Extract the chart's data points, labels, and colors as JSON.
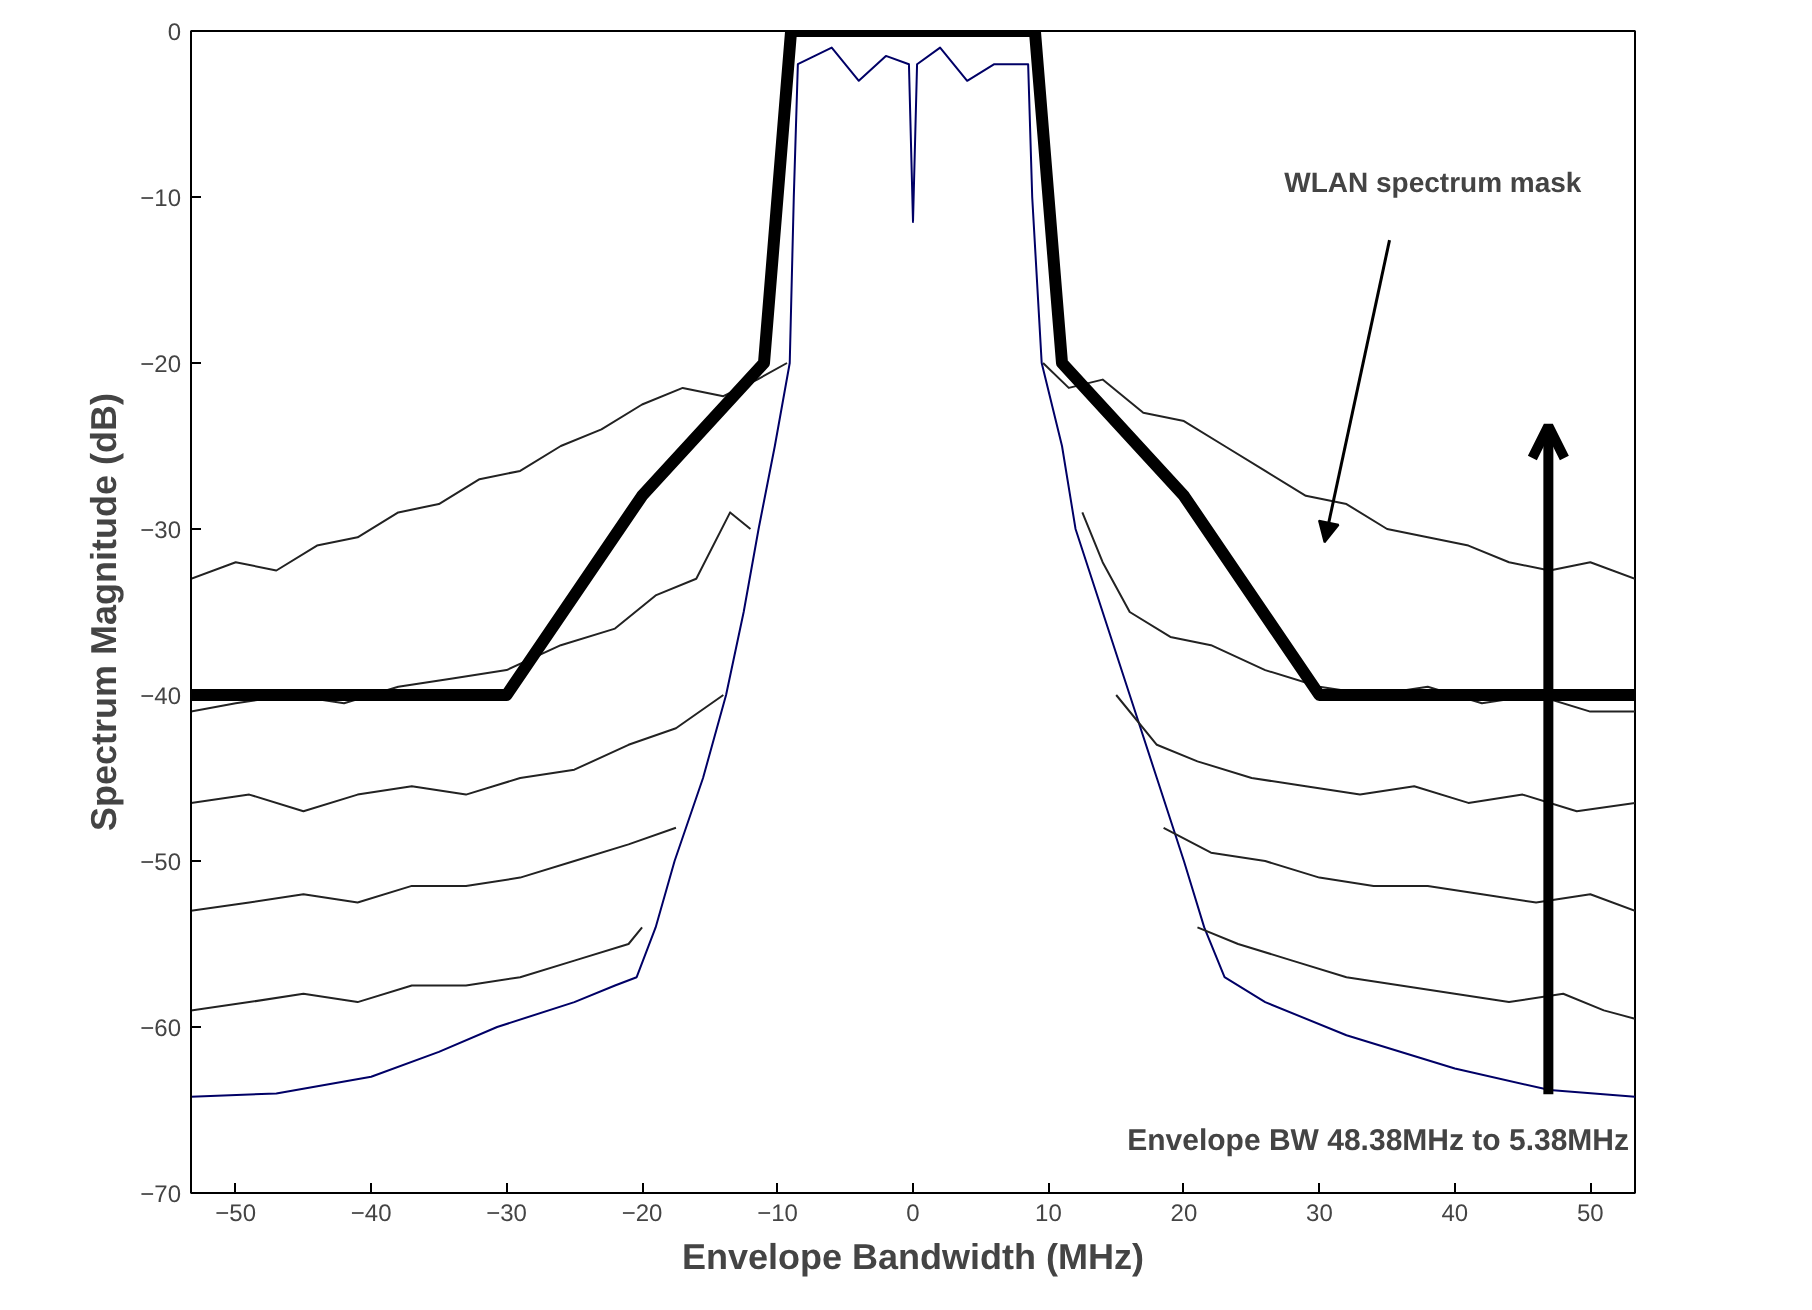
{
  "chart_data": {
    "type": "line",
    "xlabel": "Envelope Bandwidth (MHz)",
    "ylabel": "Spectrum Magnitude (dB)",
    "xlim": [
      -53.3,
      53.3
    ],
    "xticks": [
      -50,
      -40,
      -30,
      -20,
      -10,
      0,
      10,
      20,
      30,
      40,
      50
    ],
    "ylim": [
      -70,
      0
    ],
    "yticks": [
      -70,
      -60,
      -50,
      -40,
      -30,
      -20,
      -10,
      0
    ],
    "grid": false,
    "line_style": "solid",
    "annotations": [
      "Envelope BW 48.38MHz to 5.38MHz"
    ],
    "series": [
      {
        "color": "#000066",
        "x": [
          -53.3,
          -47,
          -40,
          -35,
          -30.7,
          -25,
          -22,
          -20.4,
          -19,
          -17.6,
          -15.5,
          -13.8,
          -12.5,
          -11.4,
          -10.2,
          -9.1,
          -8.8,
          -8.5,
          -6,
          -4,
          -2,
          -0.3,
          0,
          0.3,
          2,
          4,
          6,
          8.5,
          8.8,
          9.5,
          11,
          12,
          14,
          16,
          18,
          20,
          21.5,
          23,
          26,
          32,
          40,
          47,
          53.3
        ],
        "values": [
          -64.2,
          -64,
          -63,
          -61.5,
          -60,
          -58.5,
          -57.5,
          -57,
          -54,
          -50,
          -45,
          -40,
          -35,
          -30,
          -25,
          -20,
          -10,
          -2,
          -1,
          -3,
          -1.5,
          -2,
          -11.5,
          -2,
          -1,
          -3,
          -2,
          -2,
          -10,
          -20,
          -25,
          -30,
          -35,
          -40,
          -45,
          -50,
          -54,
          -57,
          -58.5,
          -60.5,
          -62.5,
          -63.8,
          -64.2
        ]
      },
      {
        "color": "#222222",
        "x": [
          -53.3,
          -50,
          -47,
          -44,
          -41,
          -38,
          -35,
          -32,
          -29,
          -26,
          -23,
          -20,
          -17,
          -14,
          -11.5,
          -9.3,
          0,
          9.6,
          11.5,
          14,
          17,
          20,
          23,
          26,
          29,
          32,
          35,
          38,
          41,
          44,
          47,
          50,
          53.3
        ],
        "values": [
          -33,
          -32,
          -32.5,
          -31,
          -30.5,
          -29,
          -28.5,
          -27,
          -26.5,
          -25,
          -24,
          -22.5,
          -21.5,
          -22,
          -21,
          -20,
          null,
          -20,
          -21.5,
          -21,
          -23,
          -23.5,
          -25,
          -26.5,
          -28,
          -28.5,
          -30,
          -30.5,
          -31,
          -32,
          -32.5,
          -32,
          -33
        ]
      },
      {
        "color": "#222222",
        "x": [
          -53.3,
          -50,
          -46,
          -42,
          -38,
          -34,
          -30,
          -26,
          -22,
          -19,
          -16,
          -13.5,
          -12,
          0,
          12.5,
          14,
          16,
          19,
          22,
          26,
          30,
          34,
          38,
          42,
          46,
          50,
          53.3
        ],
        "values": [
          -41,
          -40.5,
          -40,
          -40.5,
          -39.5,
          -39,
          -38.5,
          -37,
          -36,
          -34,
          -33,
          -29,
          -30,
          null,
          -29,
          -32,
          -35,
          -36.5,
          -37,
          -38.5,
          -39.5,
          -40,
          -39.5,
          -40.5,
          -40,
          -41,
          -41
        ]
      },
      {
        "color": "#222222",
        "x": [
          -53.3,
          -49,
          -45,
          -41,
          -37,
          -33,
          -29,
          -25,
          -21,
          -17.5,
          -14,
          0,
          15,
          18,
          21,
          25,
          29,
          33,
          37,
          41,
          45,
          49,
          53.3
        ],
        "values": [
          -46.5,
          -46,
          -47,
          -46,
          -45.5,
          -46,
          -45,
          -44.5,
          -43,
          -42,
          -40,
          null,
          -40,
          -43,
          -44,
          -45,
          -45.5,
          -46,
          -45.5,
          -46.5,
          -46,
          -47,
          -46.5
        ]
      },
      {
        "color": "#222222",
        "x": [
          -53.3,
          -49,
          -45,
          -41,
          -37,
          -33,
          -29,
          -25,
          -21,
          -17.5,
          0,
          18.5,
          22,
          26,
          30,
          34,
          38,
          42,
          46,
          50,
          53.3
        ],
        "values": [
          -53,
          -52.5,
          -52,
          -52.5,
          -51.5,
          -51.5,
          -51,
          -50,
          -49,
          -48,
          null,
          -48,
          -49.5,
          -50,
          -51,
          -51.5,
          -51.5,
          -52,
          -52.5,
          -52,
          -53
        ]
      },
      {
        "color": "#222222",
        "x": [
          -53.3,
          -49,
          -45,
          -41,
          -37,
          -33,
          -29,
          -25,
          -21,
          -20,
          0,
          21,
          24,
          28,
          32,
          36,
          40,
          44,
          48,
          51,
          53.3
        ],
        "values": [
          -59,
          -58.5,
          -58,
          -58.5,
          -57.5,
          -57.5,
          -57,
          -56,
          -55,
          -54,
          null,
          -54,
          -55,
          -56,
          -57,
          -57.5,
          -58,
          -58.5,
          -58,
          -59,
          -59.5
        ]
      },
      {
        "name": "WLAN spectrum mask",
        "color": "#000000",
        "x": [
          -53.3,
          -30,
          -20,
          -11,
          -9,
          9,
          11,
          20,
          30,
          53.3
        ],
        "values": [
          -40,
          -40,
          -28,
          -20,
          0,
          0,
          -20,
          -28,
          -40,
          -40
        ]
      }
    ]
  }
}
